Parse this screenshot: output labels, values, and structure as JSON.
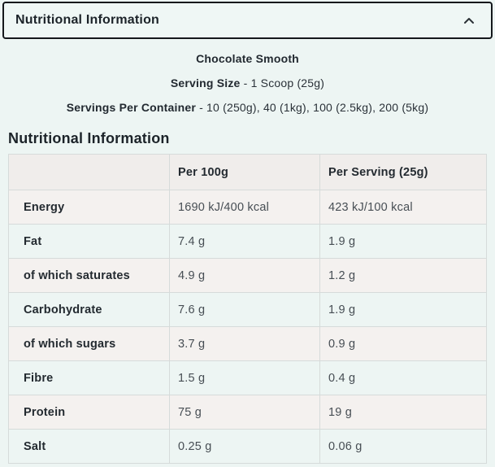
{
  "accordion": {
    "title": "Nutritional Information",
    "chevron_icon": "chevron-up"
  },
  "product": {
    "flavour": "Chocolate Smooth",
    "serving_size_label": "Serving Size",
    "serving_size_value": "- 1 Scoop (25g)",
    "servings_per_container_label": "Servings Per Container",
    "servings_per_container_value": "- 10 (250g), 40 (1kg), 100 (2.5kg), 200 (5kg)"
  },
  "section_title": "Nutritional Information",
  "table": {
    "columns": [
      "",
      "Per 100g",
      "Per Serving (25g)"
    ],
    "rows": [
      {
        "label": "Energy",
        "per_100g": "1690 kJ/400 kcal",
        "per_serving": "423 kJ/100 kcal"
      },
      {
        "label": "Fat",
        "per_100g": "7.4 g",
        "per_serving": "1.9 g"
      },
      {
        "label": "of which saturates",
        "per_100g": "4.9 g",
        "per_serving": "1.2 g"
      },
      {
        "label": "Carbohydrate",
        "per_100g": "7.6 g",
        "per_serving": "1.9 g"
      },
      {
        "label": "of which sugars",
        "per_100g": "3.7 g",
        "per_serving": "0.9 g"
      },
      {
        "label": "Fibre",
        "per_100g": "1.5 g",
        "per_serving": "0.4 g"
      },
      {
        "label": "Protein",
        "per_100g": "75 g",
        "per_serving": "19 g"
      },
      {
        "label": "Salt",
        "per_100g": "0.25 g",
        "per_serving": "0.06 g"
      }
    ]
  },
  "colors": {
    "page_background": "#edf5f3",
    "accordion_border": "#15181c",
    "table_header_row": "#f0edeb",
    "table_row_warm": "#f4f1ef",
    "table_row_mint": "#edf5f3",
    "table_border": "#d6dbda",
    "text_dark": "#1c2329",
    "text_value": "#474e54"
  }
}
